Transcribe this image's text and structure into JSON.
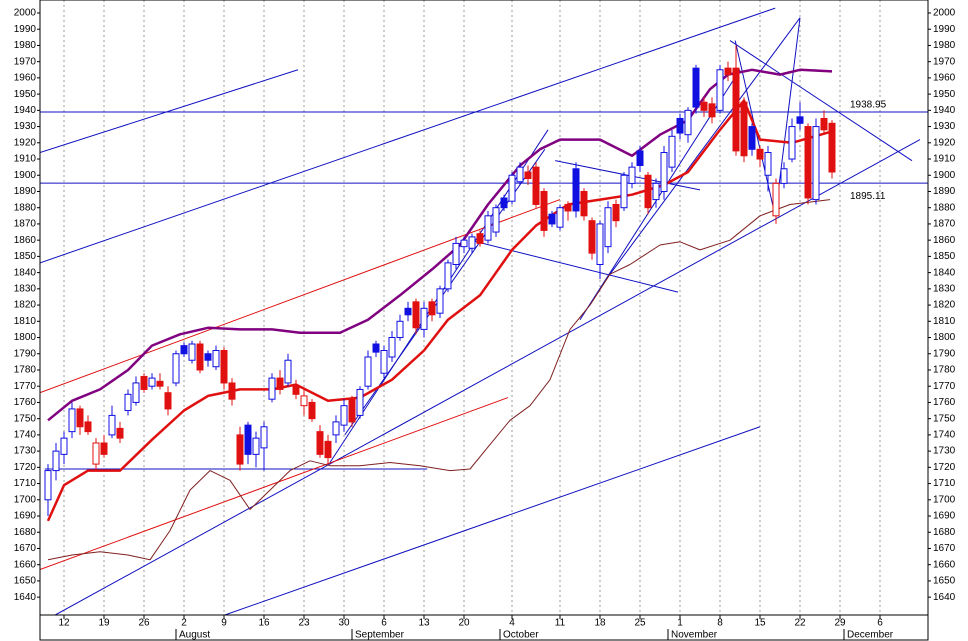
{
  "chart_data": {
    "type": "candlestick",
    "xlim": [
      -1,
      110
    ],
    "ylim": [
      1629,
      2008
    ],
    "yticks": [
      1640,
      1650,
      1660,
      1670,
      1680,
      1690,
      1700,
      1710,
      1720,
      1730,
      1740,
      1750,
      1760,
      1770,
      1780,
      1790,
      1800,
      1810,
      1820,
      1830,
      1840,
      1850,
      1860,
      1870,
      1880,
      1890,
      1900,
      1910,
      1920,
      1930,
      1940,
      1950,
      1960,
      1970,
      1980,
      1990,
      2000
    ],
    "xticks": [
      {
        "value": 2,
        "label": "12"
      },
      {
        "value": 7,
        "label": "19"
      },
      {
        "value": 12,
        "label": "26"
      },
      {
        "value": 17,
        "label": "2"
      },
      {
        "value": 22,
        "label": "9"
      },
      {
        "value": 27,
        "label": "16"
      },
      {
        "value": 32,
        "label": "23"
      },
      {
        "value": 37,
        "label": "30"
      },
      {
        "value": 42,
        "label": "6"
      },
      {
        "value": 47,
        "label": "13"
      },
      {
        "value": 52,
        "label": "20"
      },
      {
        "value": 58,
        "label": "4"
      },
      {
        "value": 64,
        "label": "11"
      },
      {
        "value": 69,
        "label": "18"
      },
      {
        "value": 74,
        "label": "25"
      },
      {
        "value": 79,
        "label": "1"
      },
      {
        "value": 84,
        "label": "8"
      },
      {
        "value": 89,
        "label": "15"
      },
      {
        "value": 94,
        "label": "22"
      },
      {
        "value": 99,
        "label": "29"
      },
      {
        "value": 104,
        "label": "6"
      }
    ],
    "months": [
      {
        "value": 16,
        "label": "August"
      },
      {
        "value": 38,
        "label": "September"
      },
      {
        "value": 56.5,
        "label": "October"
      },
      {
        "value": 77.5,
        "label": "November"
      },
      {
        "value": 99.5,
        "label": "December"
      }
    ],
    "grid": true,
    "up_color": "#1010e0",
    "down_color": "#e01010",
    "open": [
      1700,
      1718,
      1728,
      1742,
      1756,
      1748,
      1722,
      1735,
      1740,
      1744,
      1755,
      1760,
      1776,
      1770,
      1773,
      1766,
      1772,
      1795,
      1786,
      1796,
      1790,
      1782,
      1792,
      1772,
      1740,
      1746,
      1728,
      1732,
      1762,
      1775,
      1772,
      1770,
      1758,
      1760,
      1742,
      1736,
      1740,
      1746,
      1762,
      1752,
      1770,
      1796,
      1778,
      1788,
      1800,
      1818,
      1822,
      1805,
      1822,
      1815,
      1830,
      1845,
      1856,
      1855,
      1864,
      1860,
      1865,
      1886,
      1884,
      1896,
      1902,
      1905,
      1890,
      1876,
      1868,
      1882,
      1904,
      1890,
      1872,
      1845,
      1856,
      1882,
      1880,
      1895,
      1915,
      1900,
      1885,
      1890,
      1905,
      1935,
      1925,
      1966,
      1945,
      1944,
      1940,
      1966,
      1966,
      1945,
      1930,
      1916,
      1900,
      1875,
      1895,
      1910,
      1936,
      1930,
      1885,
      1935,
      1932
    ],
    "high": [
      1722,
      1735,
      1742,
      1760,
      1758,
      1752,
      1738,
      1740,
      1758,
      1748,
      1768,
      1776,
      1778,
      1778,
      1778,
      1770,
      1792,
      1797,
      1798,
      1798,
      1792,
      1795,
      1794,
      1775,
      1745,
      1748,
      1742,
      1748,
      1778,
      1780,
      1790,
      1774,
      1768,
      1762,
      1746,
      1740,
      1752,
      1762,
      1764,
      1770,
      1792,
      1798,
      1795,
      1804,
      1814,
      1822,
      1824,
      1822,
      1824,
      1832,
      1848,
      1862,
      1862,
      1864,
      1866,
      1878,
      1882,
      1888,
      1902,
      1908,
      1906,
      1908,
      1892,
      1878,
      1882,
      1884,
      1908,
      1892,
      1874,
      1872,
      1884,
      1885,
      1902,
      1908,
      1918,
      1902,
      1898,
      1918,
      1928,
      1938,
      1942,
      1968,
      1948,
      1948,
      1968,
      1970,
      1980,
      1948,
      1932,
      1918,
      1918,
      1898,
      1908,
      1935,
      1945,
      1932,
      1935,
      1940,
      1934
    ],
    "low": [
      1690,
      1712,
      1722,
      1738,
      1740,
      1740,
      1718,
      1726,
      1738,
      1735,
      1752,
      1758,
      1766,
      1768,
      1768,
      1752,
      1770,
      1788,
      1784,
      1778,
      1782,
      1780,
      1768,
      1758,
      1718,
      1722,
      1720,
      1718,
      1760,
      1765,
      1770,
      1762,
      1752,
      1748,
      1726,
      1722,
      1735,
      1742,
      1745,
      1750,
      1768,
      1788,
      1775,
      1785,
      1798,
      1810,
      1802,
      1800,
      1810,
      1812,
      1828,
      1842,
      1852,
      1852,
      1856,
      1858,
      1862,
      1878,
      1882,
      1894,
      1894,
      1880,
      1862,
      1868,
      1866,
      1872,
      1874,
      1872,
      1848,
      1836,
      1852,
      1868,
      1878,
      1892,
      1902,
      1876,
      1880,
      1885,
      1902,
      1922,
      1920,
      1938,
      1936,
      1932,
      1938,
      1958,
      1912,
      1908,
      1912,
      1905,
      1890,
      1870,
      1892,
      1908,
      1928,
      1882,
      1882,
      1925,
      1898
    ],
    "close": [
      1718,
      1730,
      1738,
      1756,
      1745,
      1742,
      1735,
      1728,
      1752,
      1738,
      1765,
      1772,
      1768,
      1775,
      1770,
      1756,
      1790,
      1790,
      1796,
      1780,
      1786,
      1792,
      1772,
      1762,
      1722,
      1728,
      1738,
      1745,
      1775,
      1768,
      1786,
      1765,
      1764,
      1750,
      1728,
      1726,
      1748,
      1758,
      1748,
      1768,
      1788,
      1791,
      1792,
      1800,
      1810,
      1814,
      1806,
      1818,
      1814,
      1830,
      1846,
      1858,
      1860,
      1862,
      1858,
      1875,
      1880,
      1880,
      1900,
      1905,
      1898,
      1882,
      1866,
      1870,
      1880,
      1878,
      1878,
      1875,
      1852,
      1870,
      1880,
      1872,
      1900,
      1905,
      1906,
      1880,
      1895,
      1914,
      1924,
      1926,
      1940,
      1942,
      1940,
      1936,
      1965,
      1962,
      1915,
      1912,
      1916,
      1910,
      1914,
      1895,
      1904,
      1930,
      1932,
      1886,
      1930,
      1928,
      1902
    ],
    "levels": [
      {
        "color": "#1010c0",
        "value": 1938.95
      },
      {
        "color": "#1010c0",
        "value": 1895.11
      }
    ],
    "lines": [
      {
        "color": "#e01010",
        "width": 2.5,
        "x": [
          0,
          2,
          5,
          9,
          13,
          17,
          20,
          24,
          28,
          31,
          35,
          39,
          43,
          47,
          50,
          54,
          58,
          61,
          65,
          69,
          73,
          77,
          80,
          84,
          87,
          89,
          93,
          98
        ],
        "values": [
          1687,
          1709,
          1718,
          1718,
          1737,
          1755,
          1764,
          1768,
          1768,
          1771,
          1761,
          1763,
          1774,
          1792,
          1811,
          1826,
          1854,
          1869,
          1882,
          1885,
          1888,
          1894,
          1902,
          1928,
          1946,
          1922,
          1920,
          1927
        ]
      },
      {
        "color": "#800080",
        "width": 2.5,
        "x": [
          0,
          3,
          6.5,
          10,
          13,
          16.5,
          20,
          24,
          28,
          31.5,
          36.5,
          40,
          44,
          48,
          51.5,
          55,
          59,
          61.5,
          64,
          66.5,
          69,
          73,
          76.5,
          80,
          82.75,
          85,
          88,
          91.5,
          94,
          98
        ],
        "values": [
          1749,
          1761,
          1768,
          1780,
          1795,
          1802,
          1806,
          1805,
          1805,
          1803,
          1803,
          1811,
          1826,
          1842,
          1857,
          1882,
          1906,
          1916,
          1922,
          1922,
          1922,
          1912,
          1925,
          1934,
          1953,
          1962,
          1965,
          1962,
          1965,
          1964
        ]
      },
      {
        "color": "#802020",
        "width": 1,
        "x": [
          0,
          3,
          6.5,
          10,
          12.75,
          15.25,
          17.75,
          20.25,
          22.75,
          25.25,
          27.75,
          30.25,
          32.75,
          35.25,
          39,
          42.75,
          46.5,
          50.25,
          52.75,
          55.25,
          57.75,
          60.25,
          62.75,
          65.25,
          67.75,
          70.25,
          72.75,
          76.5,
          79,
          81.5,
          85.25,
          89,
          92.75,
          97.75
        ],
        "values": [
          1663,
          1666,
          1668,
          1666,
          1663,
          1681,
          1706,
          1718,
          1712,
          1694,
          1706,
          1718,
          1724,
          1721,
          1721,
          1723,
          1721,
          1718,
          1719,
          1734,
          1749,
          1758,
          1774,
          1805,
          1820,
          1839,
          1845,
          1857,
          1859,
          1854,
          1860,
          1875,
          1882,
          1885
        ]
      }
    ],
    "trendlines": [
      {
        "color": "#1010c0",
        "x": [
          -1,
          31.25
        ],
        "values": [
          1914,
          1965
        ]
      },
      {
        "color": "#1010c0",
        "x": [
          -1,
          90.9
        ],
        "values": [
          1846,
          2003
        ]
      },
      {
        "color": "#1010c0",
        "x": [
          0.9,
          109
        ],
        "values": [
          1629,
          1922
        ]
      },
      {
        "color": "#1010c0",
        "x": [
          22.1,
          89
        ],
        "values": [
          1629,
          1745
        ]
      },
      {
        "color": "#1010c0",
        "x": [
          -0.4,
          47.4
        ],
        "values": [
          1719,
          1719
        ]
      },
      {
        "color": "#1010c0",
        "x": [
          35.25,
          62.5
        ],
        "values": [
          1723,
          1928
        ]
      },
      {
        "color": "#1010c0",
        "x": [
          37.1,
          62.1
        ],
        "values": [
          1740,
          1916
        ]
      },
      {
        "color": "#1010c0",
        "x": [
          52.75,
          78.75
        ],
        "values": [
          1860,
          1828
        ]
      },
      {
        "color": "#1010c0",
        "x": [
          63.4,
          81.5
        ],
        "values": [
          1909,
          1891
        ]
      },
      {
        "color": "#1010c0",
        "x": [
          66.5,
          86.5
        ],
        "values": [
          1811,
          1965
        ]
      },
      {
        "color": "#1010c0",
        "x": [
          70.25,
          94
        ],
        "values": [
          1839,
          1997
        ]
      },
      {
        "color": "#1010c0",
        "x": [
          85.25,
          108
        ],
        "values": [
          1983,
          1909
        ]
      },
      {
        "color": "#1010c0",
        "x": [
          85.9,
          90.9
        ],
        "values": [
          1983,
          1875
        ]
      },
      {
        "color": "#1010c0",
        "x": [
          90.9,
          94
        ],
        "values": [
          1875,
          1997
        ]
      },
      {
        "color": "#e01010",
        "x": [
          -1,
          64
        ],
        "values": [
          1766,
          1885
        ]
      },
      {
        "color": "#e01010",
        "x": [
          -1,
          57.5
        ],
        "values": [
          1657,
          1763
        ]
      }
    ]
  }
}
